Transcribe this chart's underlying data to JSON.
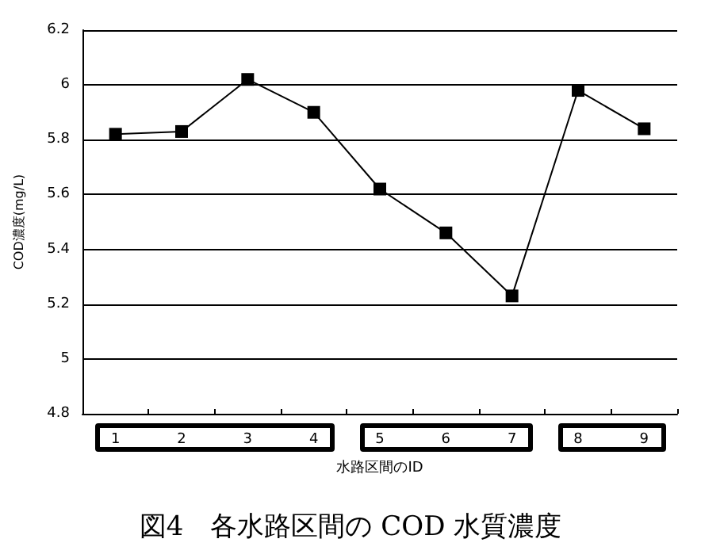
{
  "chart_data": {
    "type": "line",
    "title": "図4　各水路区間の COD 水質濃度",
    "xlabel": "水路区間のID",
    "ylabel": "COD濃度(mg/L)",
    "categories": [
      "1",
      "2",
      "3",
      "4",
      "5",
      "6",
      "7",
      "8",
      "9"
    ],
    "series": [
      {
        "color": "#000000",
        "values": [
          5.82,
          5.83,
          6.02,
          5.9,
          5.62,
          5.46,
          5.23,
          5.98,
          5.84
        ]
      }
    ],
    "ylim": [
      4.8,
      6.2
    ],
    "yticks": [
      4.8,
      5,
      5.2,
      5.4,
      5.6,
      5.8,
      6,
      6.2
    ],
    "grid": "y",
    "marker": "square",
    "line_style": "solid"
  }
}
